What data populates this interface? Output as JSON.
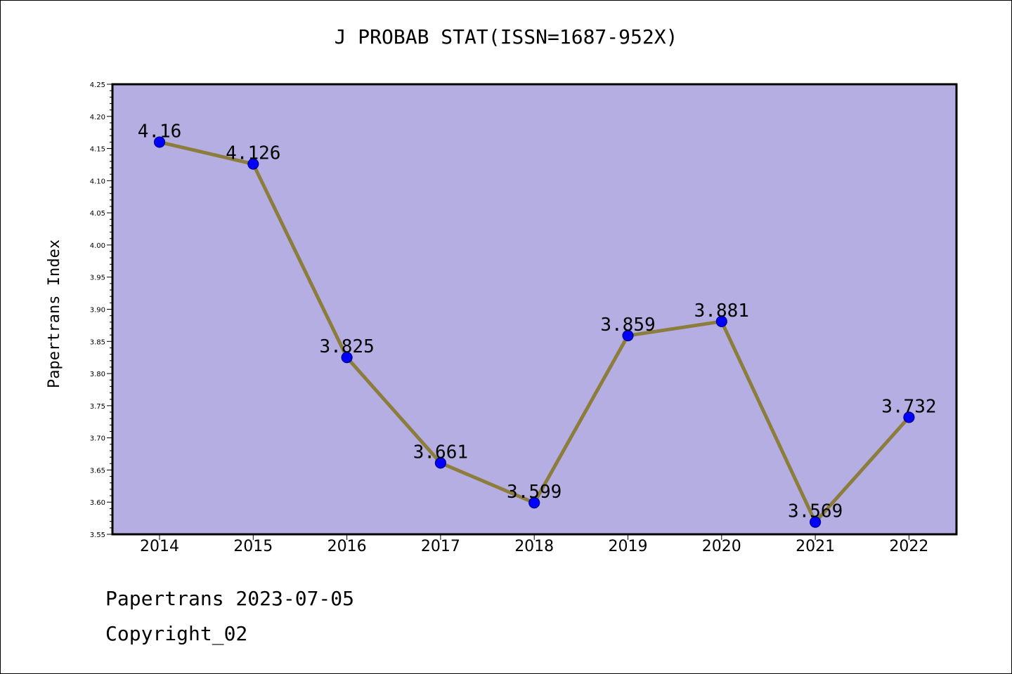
{
  "chart_data": {
    "type": "line",
    "title": "J PROBAB STAT(ISSN=1687-952X)",
    "xlabel": "",
    "ylabel": "Papertrans Index",
    "categories": [
      "2014",
      "2015",
      "2016",
      "2017",
      "2018",
      "2019",
      "2020",
      "2021",
      "2022"
    ],
    "values": [
      4.16,
      4.126,
      3.825,
      3.661,
      3.599,
      3.859,
      3.881,
      3.569,
      3.732
    ],
    "data_labels": [
      "4.16",
      "4.126",
      "3.825",
      "3.661",
      "3.599",
      "3.859",
      "3.881",
      "3.569",
      "3.732"
    ],
    "ylim": [
      3.55,
      4.25
    ],
    "yticks": [
      "3.55",
      "3.60",
      "3.65",
      "3.70",
      "3.75",
      "3.80",
      "3.85",
      "3.90",
      "3.95",
      "4.00",
      "4.05",
      "4.10",
      "4.15",
      "4.20",
      "4.25"
    ],
    "grid": false,
    "legend": "none",
    "colors": {
      "plot_background": "#b4aee2",
      "line": "#8c7d3c",
      "marker_fill": "#0000ff",
      "marker_edge": "#00008b",
      "axes": "#000000"
    }
  },
  "footer": {
    "line1": "Papertrans 2023-07-05",
    "line2": "Copyright_02"
  }
}
